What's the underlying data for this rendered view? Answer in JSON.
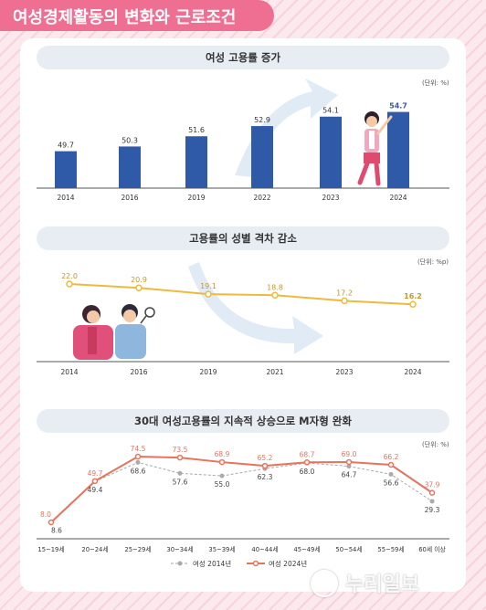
{
  "title": "여성경제활동의 변화와 근로조건",
  "colors": {
    "accent": "#ef6f92",
    "bar": "#2e5aa8",
    "gap_line": "#f0b93d",
    "series_2014": "#aaaaaa",
    "series_2024": "#e8735c",
    "pill_bg": "#e8edf3"
  },
  "watermark": {
    "logo": "NR",
    "text": "누리일보"
  },
  "chart_data": [
    {
      "type": "bar",
      "title": "여성 고용률 증가",
      "unit": "(단위: %)",
      "categories": [
        "2014",
        "2016",
        "2019",
        "2022",
        "2023",
        "2024"
      ],
      "values": [
        49.7,
        50.3,
        51.6,
        52.9,
        54.1,
        54.7
      ],
      "labels": [
        "49.7",
        "50.3",
        "51.6",
        "52.9",
        "54.1",
        "54.7"
      ],
      "highlight_last": true
    },
    {
      "type": "line",
      "title": "고용률의 성별 격차 감소",
      "unit": "(단위: %p)",
      "categories": [
        "2014",
        "2016",
        "2019",
        "2021",
        "2023",
        "2024"
      ],
      "values": [
        22.0,
        20.9,
        19.1,
        18.8,
        17.2,
        16.2
      ],
      "labels": [
        "22.0",
        "20.9",
        "19.1",
        "18.8",
        "17.2",
        "16.2"
      ]
    },
    {
      "type": "line",
      "title": "30대 여성고용률의 지속적 상승으로 M자형 완화",
      "unit": "(단위: %)",
      "categories": [
        "15~19세",
        "20~24세",
        "25~29세",
        "30~34세",
        "35~39세",
        "40~44세",
        "45~49세",
        "50~54세",
        "55~59세",
        "60세 이상"
      ],
      "series": [
        {
          "name": "여성 2014년",
          "values": [
            8.6,
            49.4,
            68.6,
            57.6,
            55.0,
            62.3,
            68.0,
            64.7,
            56.6,
            29.3
          ],
          "labels": [
            "8.6",
            "49.4",
            "68.6",
            "57.6",
            "55.0",
            "62.3",
            "68.0",
            "64.7",
            "56.6",
            "29.3"
          ]
        },
        {
          "name": "여성 2024년",
          "values": [
            8.0,
            49.7,
            74.5,
            73.5,
            68.9,
            65.2,
            68.7,
            69.0,
            66.2,
            37.9
          ],
          "labels": [
            "8.0",
            "49.7",
            "74.5",
            "73.5",
            "68.9",
            "65.2",
            "68.7",
            "69.0",
            "66.2",
            "37.9"
          ]
        }
      ]
    }
  ]
}
